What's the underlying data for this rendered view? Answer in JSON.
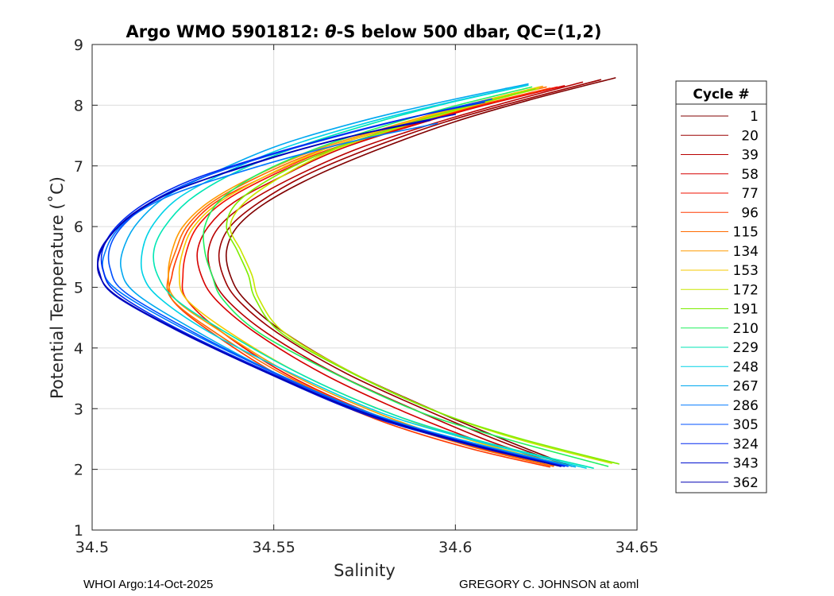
{
  "chart_data": {
    "type": "line",
    "title_prefix": "Argo WMO 5901812: ",
    "title_symbol": "θ",
    "title_suffix": "-S below 500 dbar,  QC=(1,2)",
    "xlabel": "Salinity",
    "ylabel": "Potential Temperature (˚C)",
    "xlim": [
      34.5,
      34.65
    ],
    "ylim": [
      1,
      9
    ],
    "xticks": [
      34.5,
      34.55,
      34.6,
      34.65
    ],
    "xtick_labels": [
      "34.5",
      "34.55",
      "34.6",
      "34.65"
    ],
    "yticks": [
      1,
      2,
      3,
      4,
      5,
      6,
      7,
      8,
      9
    ],
    "ytick_labels": [
      "1",
      "2",
      "3",
      "4",
      "5",
      "6",
      "7",
      "8",
      "9"
    ],
    "grid": true,
    "legend_title": "Cycle #",
    "legend_position": "outside-right",
    "series": [
      {
        "name": "1",
        "color": "#800000",
        "x": [
          34.644,
          34.62,
          34.6,
          34.58,
          34.562,
          34.548,
          34.54,
          34.537,
          34.538,
          34.542,
          34.553,
          34.572,
          34.595,
          34.615,
          34.632
        ],
        "y": [
          8.45,
          8.08,
          7.73,
          7.3,
          6.85,
          6.4,
          6.0,
          5.6,
          5.2,
          4.8,
          4.25,
          3.58,
          2.95,
          2.45,
          2.05
        ]
      },
      {
        "name": "20",
        "color": "#9c0000",
        "x": [
          34.64,
          34.617,
          34.597,
          34.577,
          34.559,
          34.546,
          34.538,
          34.535,
          34.536,
          34.54,
          34.551,
          34.57,
          34.593,
          34.613,
          34.631
        ],
        "y": [
          8.42,
          8.06,
          7.72,
          7.3,
          6.85,
          6.4,
          6.0,
          5.6,
          5.2,
          4.8,
          4.25,
          3.58,
          2.95,
          2.45,
          2.06
        ]
      },
      {
        "name": "39",
        "color": "#b80000",
        "x": [
          34.635,
          34.613,
          34.593,
          34.573,
          34.556,
          34.543,
          34.535,
          34.532,
          34.533,
          34.537,
          34.548,
          34.567,
          34.59,
          34.61,
          34.629
        ],
        "y": [
          8.38,
          8.03,
          7.68,
          7.28,
          6.83,
          6.4,
          6.0,
          5.6,
          5.2,
          4.8,
          4.25,
          3.58,
          2.95,
          2.45,
          2.07
        ]
      },
      {
        "name": "58",
        "color": "#d50000",
        "x": [
          34.63,
          34.608,
          34.588,
          34.568,
          34.552,
          34.539,
          34.532,
          34.529,
          34.53,
          34.534,
          34.545,
          34.564,
          34.587,
          34.608,
          34.627
        ],
        "y": [
          8.32,
          8.0,
          7.66,
          7.27,
          6.82,
          6.4,
          6.0,
          5.6,
          5.2,
          4.8,
          4.25,
          3.56,
          2.92,
          2.43,
          2.07
        ]
      },
      {
        "name": "77",
        "color": "#f21000",
        "x": [
          34.628,
          34.606,
          34.585,
          34.565,
          34.548,
          34.536,
          34.529,
          34.526,
          34.525,
          34.526,
          34.536,
          34.555,
          34.58,
          34.605,
          34.627
        ],
        "y": [
          8.3,
          7.98,
          7.62,
          7.24,
          6.8,
          6.4,
          6.0,
          5.6,
          5.2,
          4.8,
          4.25,
          3.52,
          2.85,
          2.38,
          2.05
        ]
      },
      {
        "name": "96",
        "color": "#ff3a00",
        "x": [
          34.626,
          34.604,
          34.583,
          34.563,
          34.546,
          34.534,
          34.527,
          34.524,
          34.522,
          34.522,
          34.533,
          34.553,
          34.578,
          34.603,
          34.626
        ],
        "y": [
          8.28,
          7.96,
          7.6,
          7.22,
          6.78,
          6.4,
          6.0,
          5.6,
          5.2,
          4.8,
          4.25,
          3.5,
          2.83,
          2.36,
          2.04
        ]
      },
      {
        "name": "115",
        "color": "#ff6a00",
        "x": [
          34.625,
          34.603,
          34.582,
          34.562,
          34.545,
          34.533,
          34.526,
          34.523,
          34.521,
          34.522,
          34.534,
          34.554,
          34.579,
          34.604,
          34.627
        ],
        "y": [
          8.3,
          7.98,
          7.62,
          7.24,
          6.8,
          6.4,
          6.0,
          5.6,
          5.2,
          4.8,
          4.25,
          3.52,
          2.86,
          2.38,
          2.05
        ]
      },
      {
        "name": "134",
        "color": "#ff9a00",
        "x": [
          34.624,
          34.602,
          34.581,
          34.561,
          34.544,
          34.532,
          34.525,
          34.522,
          34.521,
          34.523,
          34.536,
          34.556,
          34.581,
          34.605,
          34.628
        ],
        "y": [
          8.31,
          7.99,
          7.63,
          7.25,
          6.81,
          6.4,
          6.0,
          5.6,
          5.2,
          4.8,
          4.25,
          3.53,
          2.87,
          2.4,
          2.06
        ]
      },
      {
        "name": "153",
        "color": "#f5c800",
        "x": [
          34.623,
          34.602,
          34.582,
          34.563,
          34.547,
          34.535,
          34.528,
          34.525,
          34.524,
          34.526,
          34.538,
          34.558,
          34.583,
          34.607,
          34.63
        ],
        "y": [
          8.3,
          7.98,
          7.63,
          7.25,
          6.81,
          6.4,
          6.0,
          5.6,
          5.2,
          4.8,
          4.25,
          3.55,
          2.9,
          2.43,
          2.08
        ]
      },
      {
        "name": "172",
        "color": "#c8e600",
        "x": [
          34.623,
          34.603,
          34.584,
          34.566,
          34.552,
          34.542,
          34.538,
          34.541,
          34.544,
          34.546,
          34.553,
          34.572,
          34.595,
          34.617,
          34.643
        ],
        "y": [
          8.28,
          7.96,
          7.62,
          7.25,
          6.82,
          6.4,
          6.0,
          5.6,
          5.2,
          4.8,
          4.25,
          3.58,
          2.95,
          2.5,
          2.1
        ]
      },
      {
        "name": "191",
        "color": "#7ded00",
        "x": [
          34.622,
          34.602,
          34.583,
          34.565,
          34.55,
          34.54,
          34.537,
          34.54,
          34.543,
          34.545,
          34.552,
          34.571,
          34.594,
          34.617,
          34.645
        ],
        "y": [
          8.27,
          7.96,
          7.62,
          7.25,
          6.82,
          6.4,
          6.0,
          5.6,
          5.2,
          4.8,
          4.25,
          3.6,
          2.97,
          2.52,
          2.09
        ]
      },
      {
        "name": "210",
        "color": "#20f05e",
        "x": [
          34.621,
          34.6,
          34.58,
          34.561,
          34.545,
          34.535,
          34.531,
          34.531,
          34.533,
          34.536,
          34.546,
          34.566,
          34.59,
          34.614,
          34.642
        ],
        "y": [
          8.3,
          7.99,
          7.65,
          7.27,
          6.84,
          6.42,
          6.0,
          5.6,
          5.2,
          4.8,
          4.25,
          3.6,
          2.95,
          2.5,
          2.05
        ]
      },
      {
        "name": "229",
        "color": "#00e6b4",
        "x": [
          34.62,
          34.597,
          34.576,
          34.556,
          34.539,
          34.527,
          34.52,
          34.517,
          34.518,
          34.523,
          34.537,
          34.558,
          34.583,
          34.608,
          34.638
        ],
        "y": [
          8.33,
          8.02,
          7.68,
          7.3,
          6.88,
          6.45,
          6.0,
          5.6,
          5.2,
          4.8,
          4.25,
          3.55,
          2.9,
          2.45,
          2.02
        ]
      },
      {
        "name": "248",
        "color": "#00d2e6",
        "x": [
          34.62,
          34.597,
          34.575,
          34.554,
          34.537,
          34.524,
          34.517,
          34.514,
          34.514,
          34.519,
          34.534,
          34.556,
          34.581,
          34.607,
          34.636
        ],
        "y": [
          8.33,
          8.03,
          7.7,
          7.32,
          6.9,
          6.48,
          6.05,
          5.65,
          5.2,
          4.8,
          4.2,
          3.55,
          2.9,
          2.45,
          2.02
        ]
      },
      {
        "name": "267",
        "color": "#00a8f0",
        "x": [
          34.62,
          34.596,
          34.573,
          34.552,
          34.535,
          34.521,
          34.513,
          34.509,
          34.508,
          34.512,
          34.528,
          34.55,
          34.577,
          34.604,
          34.633
        ],
        "y": [
          8.35,
          8.05,
          7.72,
          7.35,
          6.93,
          6.52,
          6.1,
          5.7,
          5.3,
          4.9,
          4.3,
          3.6,
          2.92,
          2.45,
          2.04
        ]
      },
      {
        "name": "286",
        "color": "#0078ff",
        "x": [
          34.595,
          34.575,
          34.555,
          34.538,
          34.523,
          34.513,
          34.507,
          34.504,
          34.503,
          34.507,
          34.524,
          34.548,
          34.575,
          34.603,
          34.63
        ],
        "y": [
          7.7,
          7.45,
          7.15,
          6.85,
          6.55,
          6.25,
          5.95,
          5.65,
          5.3,
          4.95,
          4.35,
          3.65,
          2.95,
          2.45,
          2.05
        ]
      },
      {
        "name": "305",
        "color": "#0050ff",
        "x": [
          34.61,
          34.588,
          34.567,
          34.547,
          34.53,
          34.517,
          34.509,
          34.505,
          34.505,
          34.509,
          34.526,
          34.549,
          34.576,
          34.603,
          34.631
        ],
        "y": [
          8.1,
          7.8,
          7.48,
          7.14,
          6.8,
          6.43,
          6.05,
          5.68,
          5.3,
          4.92,
          4.32,
          3.62,
          2.93,
          2.45,
          2.05
        ]
      },
      {
        "name": "324",
        "color": "#0028f0",
        "x": [
          34.608,
          34.585,
          34.564,
          34.544,
          34.527,
          34.515,
          34.507,
          34.503,
          34.503,
          34.507,
          34.524,
          34.548,
          34.575,
          34.602,
          34.63
        ],
        "y": [
          8.05,
          7.76,
          7.44,
          7.1,
          6.76,
          6.4,
          6.02,
          5.64,
          5.28,
          4.9,
          4.3,
          3.62,
          2.93,
          2.45,
          2.05
        ]
      },
      {
        "name": "343",
        "color": "#0010d0",
        "x": [
          34.6,
          34.578,
          34.558,
          34.54,
          34.524,
          34.513,
          34.506,
          34.502,
          34.502,
          34.506,
          34.523,
          34.547,
          34.574,
          34.601,
          34.629
        ],
        "y": [
          7.85,
          7.58,
          7.28,
          6.95,
          6.62,
          6.27,
          5.92,
          5.58,
          5.25,
          4.88,
          4.3,
          3.62,
          2.93,
          2.45,
          2.05
        ]
      },
      {
        "name": "362",
        "color": "#0000b4",
        "x": [
          34.593,
          34.572,
          34.553,
          34.536,
          34.521,
          34.511,
          34.505,
          34.502,
          34.502,
          34.507,
          34.524,
          34.548,
          34.575,
          34.602,
          34.629
        ],
        "y": [
          7.75,
          7.5,
          7.2,
          6.88,
          6.55,
          6.2,
          5.85,
          5.52,
          5.2,
          4.85,
          4.28,
          3.6,
          2.93,
          2.45,
          2.05
        ]
      }
    ]
  },
  "footer": {
    "left": "WHOI Argo:14-Oct-2025",
    "right": "GREGORY C. JOHNSON at aoml"
  }
}
